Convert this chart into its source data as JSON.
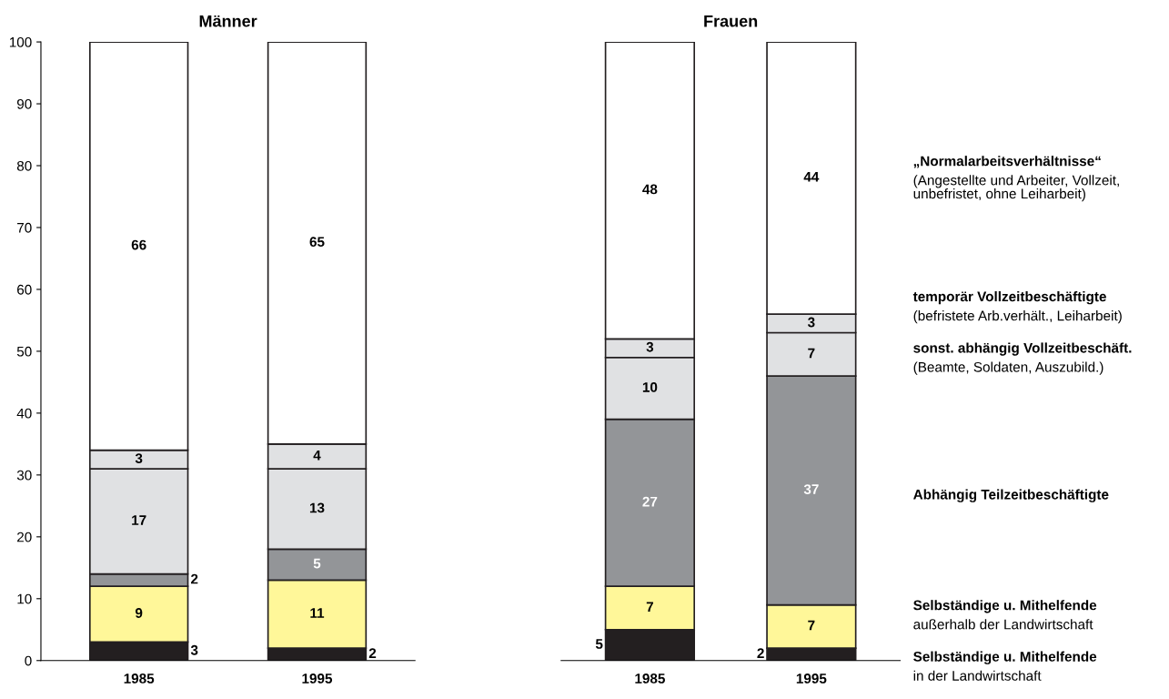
{
  "chart_data": [
    {
      "type": "bar",
      "title": "Männer",
      "categories": [
        "1985",
        "1995"
      ],
      "stacked": true,
      "data_labels": true,
      "ylim": [
        0,
        100
      ],
      "yticks": [
        0,
        10,
        20,
        30,
        40,
        50,
        60,
        70,
        80,
        90,
        100
      ],
      "grid": false,
      "legend": false,
      "series": [
        {
          "color": "#231f20",
          "values": [
            3,
            2
          ]
        },
        {
          "color": "#fff799",
          "values": [
            9,
            11
          ]
        },
        {
          "color": "#939598",
          "values": [
            2,
            5
          ]
        },
        {
          "color": "#e0e1e3",
          "values": [
            17,
            13
          ]
        },
        {
          "color": "#e0e1e3",
          "values": [
            3,
            4
          ]
        },
        {
          "color": "#ffffff",
          "values": [
            66,
            65
          ]
        }
      ]
    },
    {
      "type": "bar",
      "title": "Frauen",
      "categories": [
        "1985",
        "1995"
      ],
      "stacked": true,
      "data_labels": true,
      "ylim": [
        0,
        100
      ],
      "tick_labels": "x",
      "grid": false,
      "legend": false,
      "series": [
        {
          "name": "Selbständige u. Mithelfende\nin der Landwirtschaft",
          "color": "#231f20",
          "values": [
            5,
            2
          ]
        },
        {
          "name": "Selbständige u. Mithelfende\naußerhalb der Landwirtschaft",
          "color": "#fff799",
          "values": [
            7,
            7
          ]
        },
        {
          "name": "Abhängig Teilzeitbeschäftigte",
          "color": "#939598",
          "values": [
            27,
            37
          ]
        },
        {
          "name": "sonst. abhängig Vollzeitbeschäft.\n(Beamte, Soldaten, Auszubild.)",
          "color": "#e0e1e3",
          "values": [
            10,
            7
          ]
        },
        {
          "name": "temporär Vollzeitbeschäftigte\n(befristete Arb.verhält., Leiharbeit)",
          "color": "#e0e1e3",
          "values": [
            3,
            3
          ]
        },
        {
          "name": "„Normalarbeitsverhältnisse“\n(Angestellte und Arbeiter, Vollzeit,\nunbefristet, ohne Leiharbeit)",
          "color": "#ffffff",
          "values": [
            48,
            44
          ]
        }
      ]
    }
  ]
}
